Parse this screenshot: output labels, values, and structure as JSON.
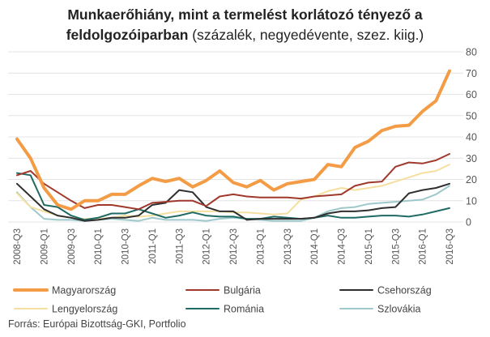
{
  "title": {
    "line1": "Munkaerőhiány, mint a termelést korlátozó tényező  a",
    "line2_bold": "feldolgozóiparban",
    "line2_rest": " (százalék, negyedévente, szez. kiig.)"
  },
  "source": "Forrás: Európai Bizottság-GKI, Portfolio",
  "chart_data": {
    "type": "line",
    "title": "Munkaerőhiány, mint a termelést korlátozó tényező  a feldolgozóiparban (százalék, negyedévente, szez. kiig.)",
    "x": [
      "2008-Q3",
      "2008-Q4",
      "2009-Q1",
      "2009-Q2",
      "2009-Q3",
      "2009-Q4",
      "2010-Q1",
      "2010-Q2",
      "2010-Q3",
      "2010-Q4",
      "2011-Q1",
      "2011-Q2",
      "2011-Q3",
      "2011-Q4",
      "2012-Q1",
      "2012-Q2",
      "2012-Q3",
      "2012-Q4",
      "2013-Q1",
      "2013-Q2",
      "2013-Q3",
      "2013-Q4",
      "2014-Q1",
      "2014-Q2",
      "2014-Q3",
      "2014-Q4",
      "2015-Q1",
      "2015-Q2",
      "2015-Q3",
      "2015-Q4",
      "2016-Q1",
      "2016-Q2",
      "2016-Q3"
    ],
    "x_tick_labels": [
      "2008-Q3",
      "2009-Q1",
      "2009-Q3",
      "2010-Q1",
      "2010-Q3",
      "2011-Q1",
      "2011-Q3",
      "2012-Q1",
      "2012-Q3",
      "2013-Q1",
      "2013-Q3",
      "2014-Q1",
      "2014-Q3",
      "2015-Q1",
      "2015-Q3",
      "2016-Q1",
      "2016-Q3"
    ],
    "ylim": [
      0,
      80
    ],
    "yticks": [
      0,
      10,
      20,
      30,
      40,
      50,
      60,
      70,
      80
    ],
    "y_axis_side": "right",
    "grid": "horizontal",
    "legend_position": "bottom",
    "series": [
      {
        "name": "Magyarország",
        "color": "#f39c45",
        "width": 4,
        "values": [
          39,
          30,
          16,
          8,
          6,
          10,
          10,
          13,
          13,
          17,
          20.5,
          19,
          20.5,
          16.5,
          19.5,
          24,
          18.5,
          16.5,
          19.5,
          15,
          18,
          19,
          20,
          27,
          26,
          35,
          38,
          43,
          45,
          45.5,
          52,
          57,
          71
        ]
      },
      {
        "name": "Bulgária",
        "color": "#a0392c",
        "width": 2,
        "values": [
          22,
          24,
          18,
          14,
          10,
          6.5,
          8,
          8,
          7,
          6,
          9,
          9.5,
          10,
          10,
          7.5,
          12,
          13,
          12,
          11.5,
          11.5,
          11.5,
          11,
          12,
          12.5,
          13,
          17,
          18.5,
          19,
          26,
          28,
          27.5,
          29,
          32
        ]
      },
      {
        "name": "Csehország",
        "color": "#2f2f2f",
        "width": 2,
        "values": [
          18,
          12,
          6,
          3,
          2,
          0.5,
          1,
          2,
          2,
          3,
          8,
          9,
          15,
          14,
          7,
          5,
          5,
          1,
          1.5,
          1.5,
          1.5,
          1.5,
          2,
          4,
          5,
          5,
          5.5,
          6.5,
          7,
          13.5,
          15,
          16,
          18
        ]
      },
      {
        "name": "Lengyelország",
        "color": "#f5dfa0",
        "width": 2,
        "values": [
          13.5,
          7,
          5,
          3,
          2,
          1.5,
          1.5,
          2,
          3,
          2.5,
          3,
          4,
          5,
          5,
          5,
          5,
          4.5,
          4.5,
          4,
          3.5,
          4,
          10.5,
          12,
          14.5,
          16,
          15,
          16,
          17,
          19,
          21,
          23,
          24,
          27
        ]
      },
      {
        "name": "Románia",
        "color": "#1f6b64",
        "width": 2,
        "values": [
          23,
          22,
          8,
          7,
          3,
          1,
          2,
          4,
          4,
          6,
          4,
          2,
          3,
          4.5,
          3,
          2.5,
          2.5,
          1.5,
          1.5,
          2.5,
          2,
          1.5,
          2,
          3,
          2,
          2,
          2.5,
          3,
          3,
          2.5,
          3.5,
          5,
          6.5
        ]
      },
      {
        "name": "Szlovákia",
        "color": "#9ec9cc",
        "width": 2,
        "values": [
          14,
          7,
          1.5,
          1,
          1,
          0.5,
          1,
          1.5,
          1,
          0.5,
          2,
          1,
          1,
          1,
          0.5,
          1.5,
          2,
          1.5,
          1,
          0.5,
          0.5,
          0.5,
          2,
          5,
          6.5,
          7,
          8.5,
          9,
          9.5,
          10,
          10.5,
          13,
          17
        ]
      }
    ]
  }
}
